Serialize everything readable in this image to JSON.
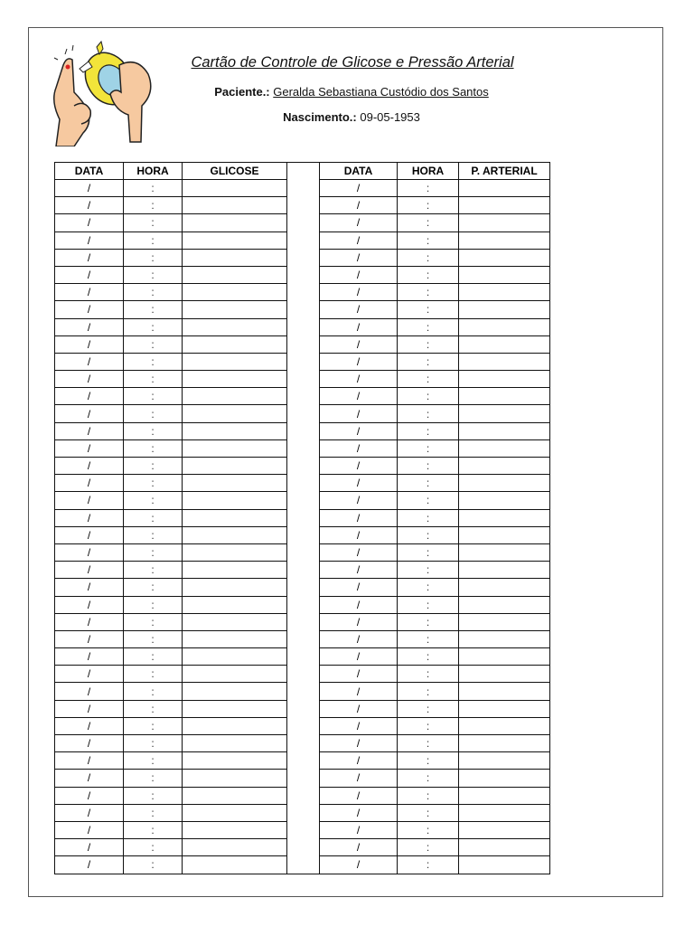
{
  "title": "Cartão de Controle de Glicose e Pressão Arterial",
  "patient": {
    "label": "Paciente.:",
    "name": "Geralda Sebastiana Custódio dos Santos"
  },
  "birth": {
    "label": "Nascimento.:",
    "date": "09-05-1953"
  },
  "logo": {
    "icon": "glucometer-hands-illustration"
  },
  "glucose_table": {
    "headers": [
      "DATA",
      "HORA",
      "GLICOSE"
    ],
    "row_count": 40,
    "row_template": {
      "data": "/",
      "hora": ":",
      "value": ""
    }
  },
  "pressure_table": {
    "headers": [
      "DATA",
      "HORA",
      "P. ARTERIAL"
    ],
    "row_count": 40,
    "row_template": {
      "data": "/",
      "hora": ":",
      "value": ""
    }
  }
}
